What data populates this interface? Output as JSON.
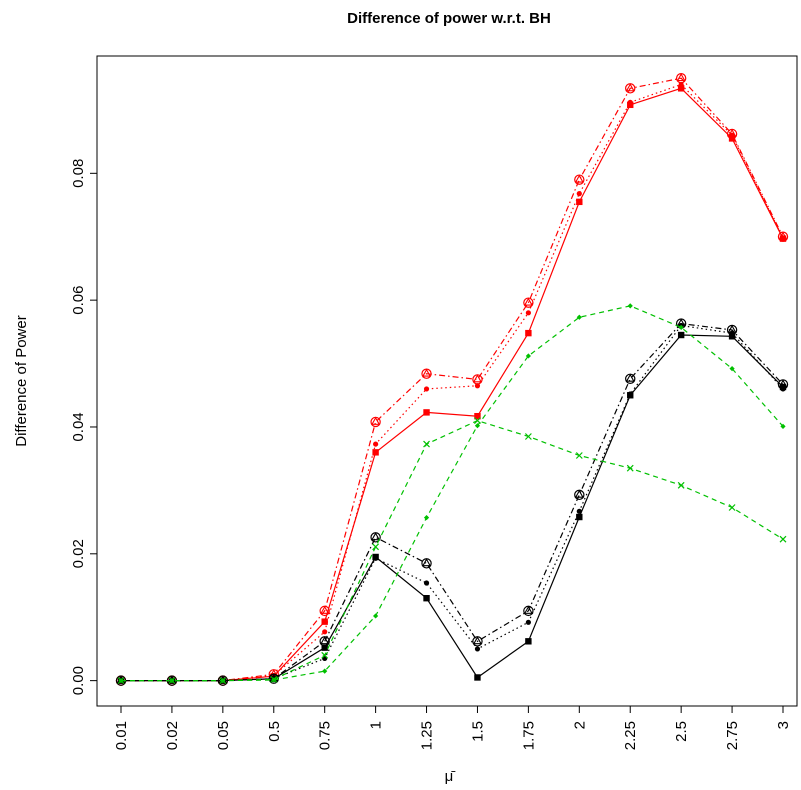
{
  "chart_data": {
    "type": "line",
    "title": "Difference of power w.r.t. BH",
    "xlabel": "μ̄",
    "ylabel": "Difference of Power",
    "categories": [
      "0.01",
      "0.02",
      "0.05",
      "0.5",
      "0.75",
      "1",
      "1.25",
      "1.5",
      "1.75",
      "2",
      "2.25",
      "2.5",
      "2.75",
      "3"
    ],
    "yticks": [
      "0.00",
      "0.02",
      "0.04",
      "0.06",
      "0.08"
    ],
    "ylim": [
      -0.004,
      0.0985
    ],
    "grid": false,
    "legend": "none",
    "series": [
      {
        "color": "#ff0000",
        "dash": "",
        "marker": "square",
        "values": [
          0,
          0,
          0,
          0.0007,
          0.0093,
          0.036,
          0.0423,
          0.0417,
          0.0548,
          0.0755,
          0.0908,
          0.0934,
          0.0855,
          0.0697
        ]
      },
      {
        "color": "#ff0000",
        "dash": "1.5,3",
        "marker": "dot",
        "values": [
          0,
          0,
          0,
          0.0008,
          0.0077,
          0.0373,
          0.046,
          0.0465,
          0.058,
          0.0768,
          0.0912,
          0.094,
          0.086,
          0.0698
        ]
      },
      {
        "color": "#ff0000",
        "dash": "6,3,1.5,3",
        "marker": "triangle",
        "values": [
          0,
          0,
          0,
          0.001,
          0.011,
          0.0408,
          0.0484,
          0.0475,
          0.0596,
          0.079,
          0.0934,
          0.095,
          0.0862,
          0.07
        ]
      },
      {
        "color": "#ff0000",
        "dash": "",
        "marker": "circle",
        "values": [
          0,
          0,
          0,
          0.001,
          0.011,
          0.0408,
          0.0484,
          0.0475,
          0.0596,
          0.079,
          0.0934,
          0.095,
          0.0862,
          0.07
        ],
        "nolines": true
      },
      {
        "color": "#000000",
        "dash": "",
        "marker": "square",
        "values": [
          0,
          0,
          0,
          0.0003,
          0.0052,
          0.0195,
          0.013,
          0.0005,
          0.0062,
          0.0258,
          0.045,
          0.0545,
          0.0543,
          0.0463
        ]
      },
      {
        "color": "#000000",
        "dash": "1.5,3",
        "marker": "dot",
        "values": [
          0,
          0,
          0,
          0.0003,
          0.0035,
          0.0193,
          0.0154,
          0.005,
          0.0092,
          0.0267,
          0.0452,
          0.056,
          0.0548,
          0.046
        ]
      },
      {
        "color": "#000000",
        "dash": "6,3,1.5,3",
        "marker": "triangle",
        "values": [
          0,
          0,
          0,
          0.0003,
          0.0062,
          0.0226,
          0.0185,
          0.0062,
          0.011,
          0.0293,
          0.0476,
          0.0563,
          0.0553,
          0.0467
        ]
      },
      {
        "color": "#000000",
        "dash": "",
        "marker": "circle",
        "values": [
          0,
          0,
          0,
          0.0003,
          0.0062,
          0.0226,
          0.0185,
          0.0062,
          0.011,
          0.0293,
          0.0476,
          0.0563,
          0.0553,
          0.0467
        ],
        "nolines": true
      },
      {
        "color": "#00c000",
        "dash": "5,4",
        "marker": "diamond",
        "values": [
          0,
          0,
          0,
          0.0001,
          0.0015,
          0.0102,
          0.0257,
          0.0402,
          0.0512,
          0.0573,
          0.0591,
          0.0557,
          0.0492,
          0.0401
        ]
      },
      {
        "color": "#00c000",
        "dash": "5,4",
        "marker": "cross",
        "values": [
          0,
          0,
          0,
          0.0002,
          0.004,
          0.0211,
          0.0373,
          0.041,
          0.0385,
          0.0355,
          0.0335,
          0.0308,
          0.0273,
          0.0223
        ]
      }
    ]
  }
}
